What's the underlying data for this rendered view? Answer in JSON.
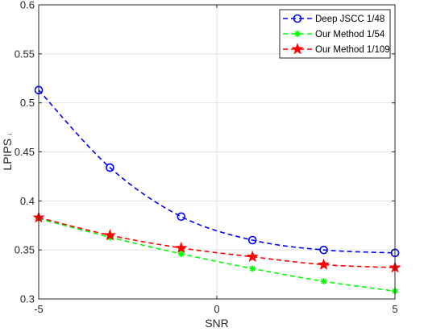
{
  "chart_data": {
    "type": "line",
    "xlabel": "SNR",
    "ylabel": "LPIPS",
    "ylabel_arrow": "↓",
    "xlim": [
      -5,
      5
    ],
    "ylim": [
      0.3,
      0.6
    ],
    "xticks": [
      -5,
      0,
      5
    ],
    "yticks": [
      0.3,
      0.35,
      0.4,
      0.45,
      0.5,
      0.55,
      0.6
    ],
    "grid": "on",
    "legend_location": "top-right",
    "x": [
      -5,
      -3,
      -1,
      1,
      3,
      5
    ],
    "series": [
      {
        "name": "Deep JSCC 1/48",
        "color": "#0000ff",
        "marker": "circle",
        "line_style": "dashed",
        "values": [
          0.513,
          0.434,
          0.384,
          0.36,
          0.35,
          0.347
        ]
      },
      {
        "name": "Our Method 1/54",
        "color": "#00ff00",
        "marker": "asterisk",
        "line_style": "dashed",
        "values": [
          0.382,
          0.363,
          0.346,
          0.331,
          0.318,
          0.308
        ]
      },
      {
        "name": "Our Method 1/109",
        "color": "#ff0000",
        "marker": "star",
        "line_style": "dashed",
        "values": [
          0.383,
          0.365,
          0.352,
          0.343,
          0.335,
          0.332
        ]
      }
    ]
  }
}
